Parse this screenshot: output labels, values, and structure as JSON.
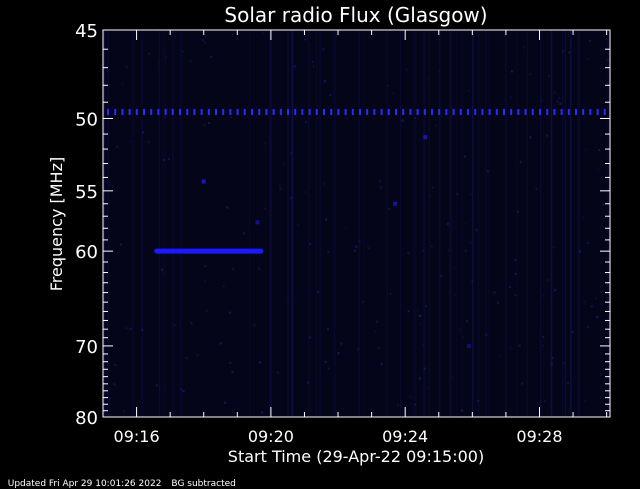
{
  "chart_data": {
    "type": "heatmap",
    "title": "Solar radio Flux (Glasgow)",
    "xlabel": "Start Time (29-Apr-22 09:15:00)",
    "ylabel": "Frequency [MHz]",
    "xlim_minutes": [
      15.0,
      30.1
    ],
    "ylim_mhz": [
      45,
      80
    ],
    "y_scale": "reciprocal",
    "x_ticks": [
      "09:16",
      "09:20",
      "09:24",
      "09:28"
    ],
    "x_tick_minutes": [
      16,
      20,
      24,
      28
    ],
    "y_ticks": [
      45,
      50,
      55,
      60,
      70,
      80
    ],
    "background_color": "#05051a",
    "signal_color": "#1a1aff",
    "interference_line_mhz": 49.6,
    "features": [
      {
        "name": "burst",
        "t_start_min": 16.6,
        "t_end_min": 19.7,
        "freq_mhz": 60.0,
        "intensity": 1.0
      },
      {
        "name": "spot",
        "t_min": 18.0,
        "freq_mhz": 54.3,
        "intensity": 0.8
      },
      {
        "name": "spot",
        "t_min": 19.6,
        "freq_mhz": 57.5,
        "intensity": 0.5
      },
      {
        "name": "spot",
        "t_min": 23.7,
        "freq_mhz": 56.0,
        "intensity": 0.6
      },
      {
        "name": "spot",
        "t_min": 24.6,
        "freq_mhz": 51.2,
        "intensity": 0.7
      },
      {
        "name": "spot",
        "t_min": 25.9,
        "freq_mhz": 70.0,
        "intensity": 0.4
      }
    ]
  },
  "footer": {
    "updated": "Updated Fri Apr 29 10:01:26 2022",
    "note": "BG subtracted"
  }
}
